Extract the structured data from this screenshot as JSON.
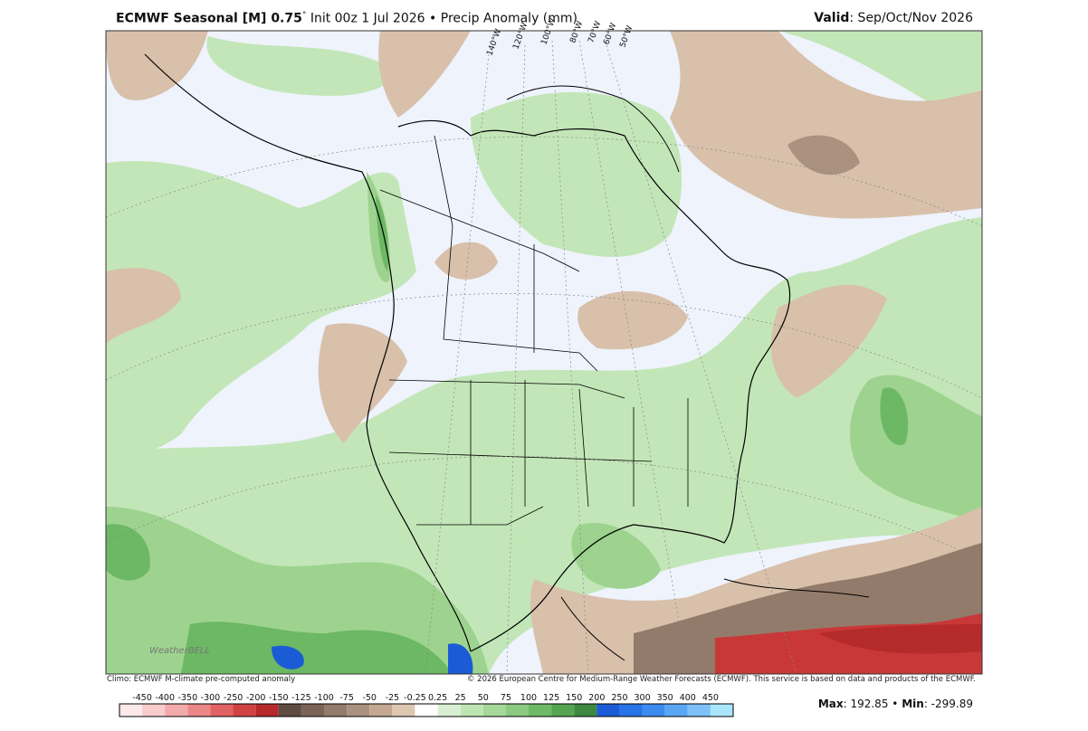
{
  "header": {
    "title": "ECMWF Seasonal [M] 0.75",
    "degree": "°",
    "init": "Init 00z 1 Jul 2026",
    "separator": "•",
    "product": "Precip Anomaly (mm)",
    "valid_label": "Valid",
    "valid_value": ": Sep/Oct/Nov 2026"
  },
  "map": {
    "longitude_labels": [
      "140°W",
      "120°W",
      "100°W",
      "80°W",
      "70°W",
      "60°W",
      "50°W"
    ],
    "logo": "WeatherBELL"
  },
  "footer": {
    "left": "Climo: ECMWF M-climate pre-computed anomaly",
    "right": "© 2026 European Centre for Medium-Range Weather Forecasts (ECMWF). This service is based on data and products of the ECMWF."
  },
  "stats": {
    "max_label": "Max",
    "max_value": ": 192.85",
    "separator": "•",
    "min_label": "Min",
    "min_value": ": -299.89"
  },
  "colorbar": {
    "labels": [
      "-450",
      "-400",
      "-350",
      "-300",
      "-250",
      "-200",
      "-150",
      "-125",
      "-100",
      "-75",
      "-50",
      "-25",
      "-0.25",
      "0.25",
      "25",
      "50",
      "75",
      "100",
      "125",
      "150",
      "200",
      "250",
      "300",
      "350",
      "400",
      "450"
    ],
    "colors": [
      "#fde9e9",
      "#f9cccc",
      "#f3aaaa",
      "#ec8787",
      "#e06262",
      "#d04343",
      "#b52a2a",
      "#5e4b41",
      "#7b6457",
      "#937b6b",
      "#ab917f",
      "#c4a792",
      "#ddc7b1",
      "#ffffff",
      "#d9efd1",
      "#c0e5b5",
      "#a6d89a",
      "#8bca80",
      "#70ba67",
      "#56a552",
      "#3e8841",
      "#1b5bd6",
      "#2873e6",
      "#3c8cf0",
      "#59a6f5",
      "#7dc1f8",
      "#aae6fb"
    ]
  }
}
